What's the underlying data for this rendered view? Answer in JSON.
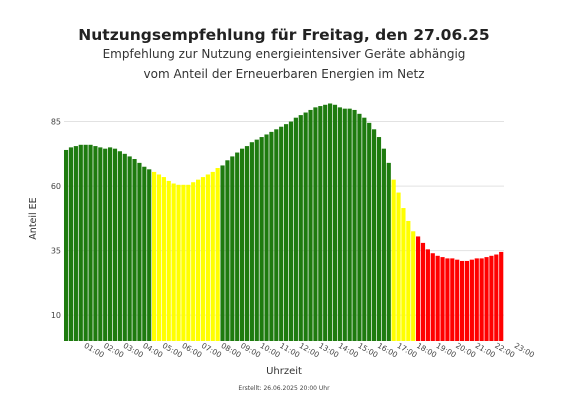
{
  "title": "Nutzungsempfehlung für Freitag, den 27.06.25",
  "subtitle_line1": "Empfehlung zur Nutzung energieintensiver Geräte abhängig",
  "subtitle_line2": "vom Anteil der Erneuerbaren Energien im Netz",
  "footnote": "Erstellt: 26.06.2025 20:00 Uhr",
  "colors": {
    "green": "#1e7b0f",
    "yellow": "#ffff00",
    "red": "#ff0000",
    "grid": "#e2e2e2"
  },
  "chart_data": {
    "type": "bar",
    "xlabel": "Uhrzeit",
    "ylabel": "Anteil EE",
    "ylim": [
      0,
      98
    ],
    "yticks": [
      10,
      35,
      60,
      85
    ],
    "grid": true,
    "xtick_labels": [
      "01:00",
      "02:00",
      "03:00",
      "04:00",
      "05:00",
      "06:00",
      "07:00",
      "08:00",
      "09:00",
      "10:00",
      "11:00",
      "12:00",
      "13:00",
      "14:00",
      "15:00",
      "16:00",
      "17:00",
      "18:00",
      "19:00",
      "20:00",
      "21:00",
      "22:00",
      "23:00"
    ],
    "interval_minutes": 15,
    "first_bar_time": "00:00",
    "values": [
      74,
      75,
      75.5,
      76,
      76,
      76,
      75.5,
      75,
      74.5,
      75,
      74.5,
      73.5,
      72.5,
      71.5,
      70.5,
      69,
      67.5,
      66.5,
      65.5,
      64.5,
      63.5,
      62,
      61,
      60.5,
      60.5,
      60.5,
      61.5,
      62.5,
      63.5,
      64.5,
      65.5,
      67,
      68,
      70,
      71.5,
      73,
      74.5,
      75.5,
      77,
      78,
      79,
      80,
      81,
      82,
      83,
      84,
      85,
      86.5,
      87.5,
      88.5,
      89.5,
      90.5,
      91,
      91.5,
      92,
      91.5,
      90.5,
      90,
      90,
      89.5,
      88,
      86.5,
      84.5,
      82,
      79,
      74.5,
      69,
      62.5,
      57.5,
      51.5,
      46.5,
      42.5,
      40.5,
      38,
      35.5,
      34,
      33,
      32.5,
      32,
      32,
      31.5,
      31,
      31,
      31.5,
      32,
      32,
      32.5,
      33,
      33.5,
      34.5
    ],
    "colors_by_bar": [
      "green",
      "green",
      "green",
      "green",
      "green",
      "green",
      "green",
      "green",
      "green",
      "green",
      "green",
      "green",
      "green",
      "green",
      "green",
      "green",
      "green",
      "green",
      "yellow",
      "yellow",
      "yellow",
      "yellow",
      "yellow",
      "yellow",
      "yellow",
      "yellow",
      "yellow",
      "yellow",
      "yellow",
      "yellow",
      "yellow",
      "yellow",
      "green",
      "green",
      "green",
      "green",
      "green",
      "green",
      "green",
      "green",
      "green",
      "green",
      "green",
      "green",
      "green",
      "green",
      "green",
      "green",
      "green",
      "green",
      "green",
      "green",
      "green",
      "green",
      "green",
      "green",
      "green",
      "green",
      "green",
      "green",
      "green",
      "green",
      "green",
      "green",
      "green",
      "green",
      "green",
      "yellow",
      "yellow",
      "yellow",
      "yellow",
      "yellow",
      "red",
      "red",
      "red",
      "red",
      "red",
      "red",
      "red",
      "red",
      "red",
      "red",
      "red",
      "red",
      "red",
      "red",
      "red",
      "red",
      "red",
      "red"
    ]
  }
}
